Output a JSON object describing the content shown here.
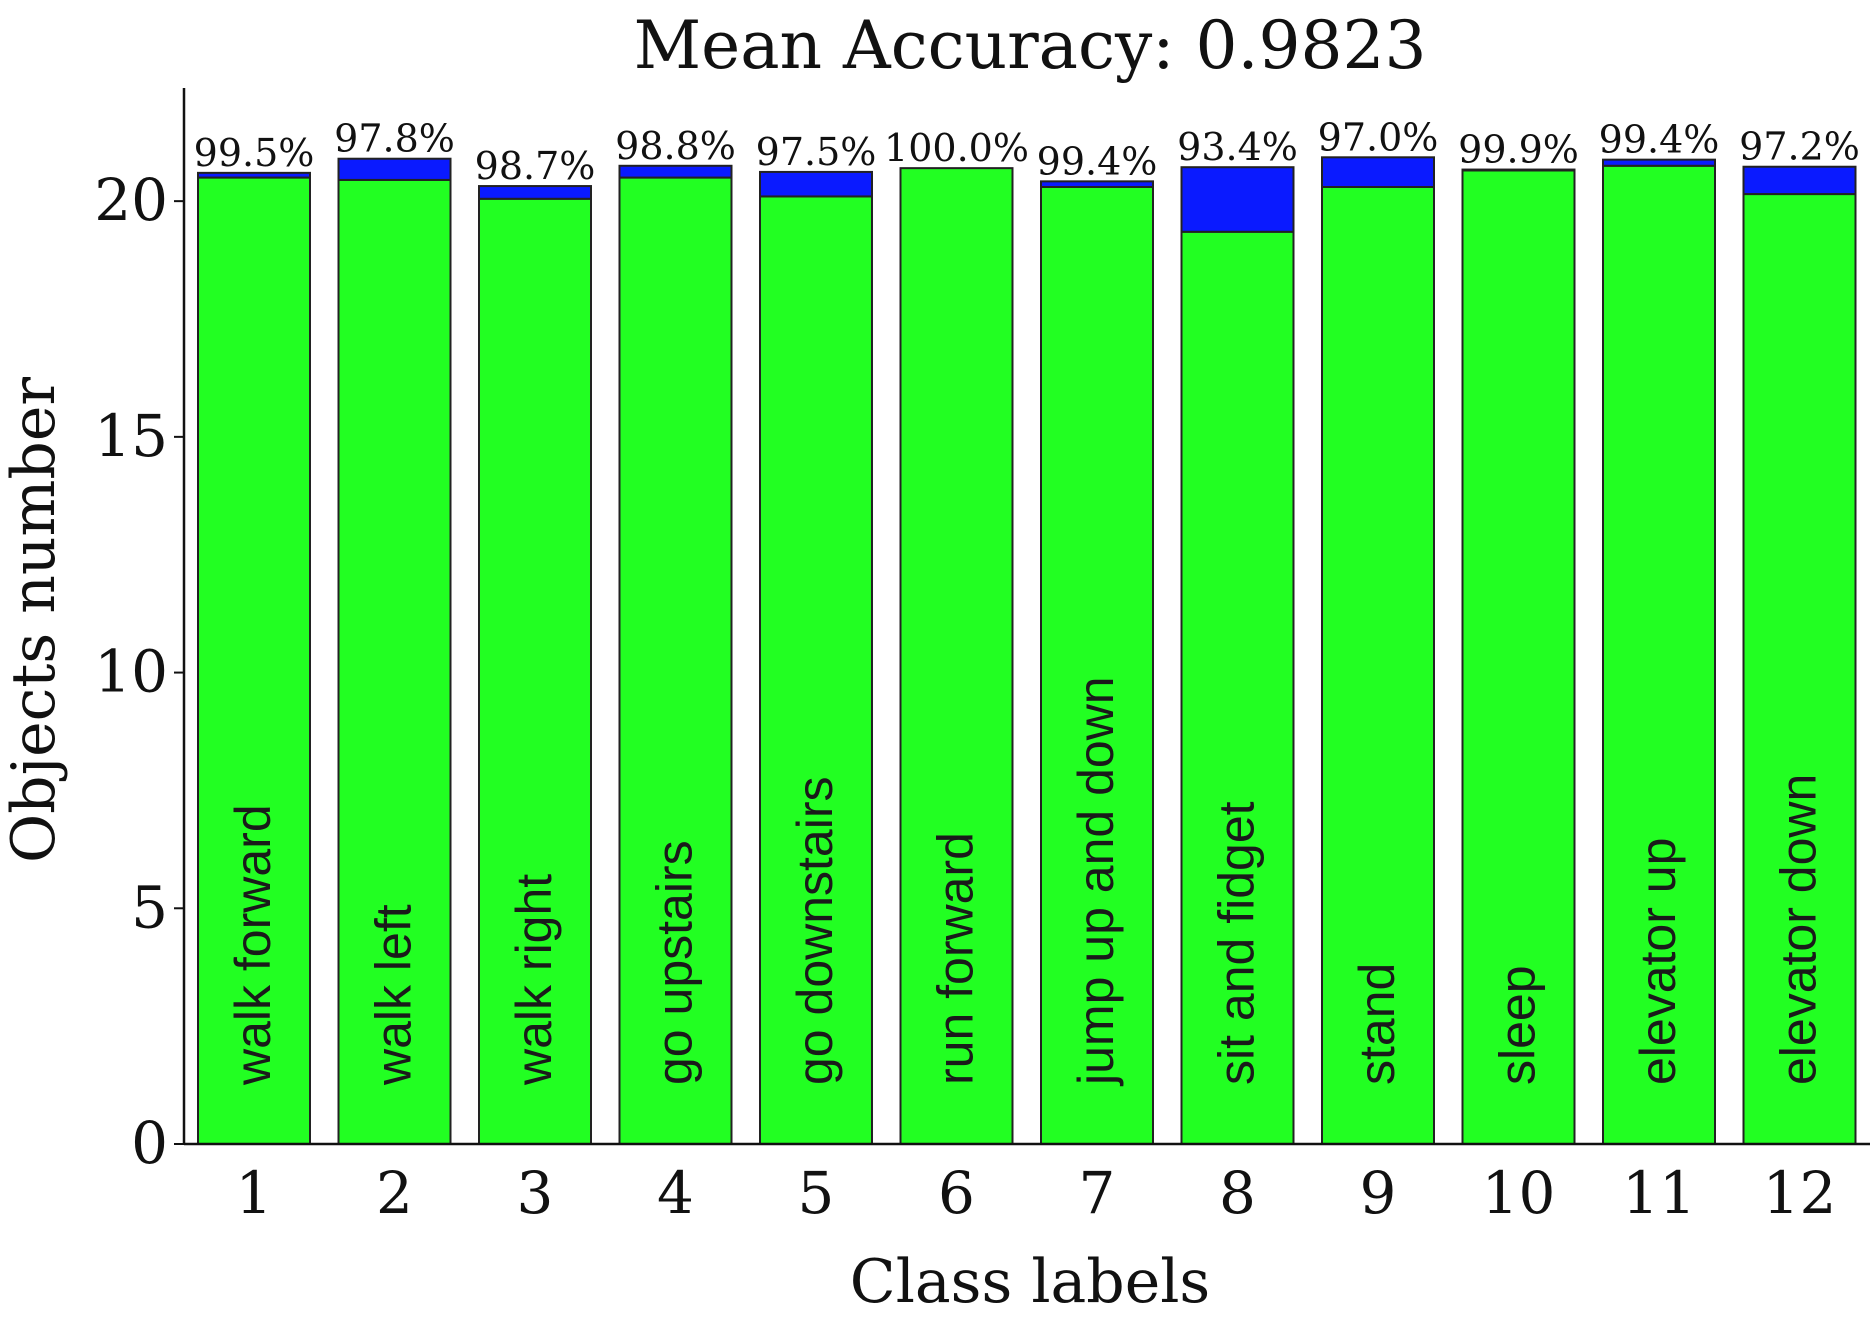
{
  "chart_data": {
    "type": "bar",
    "stacked": true,
    "title": "Mean Accuracy: 0.9823",
    "xlabel": "Class labels",
    "ylabel": "Objects number",
    "categories": [
      "1",
      "2",
      "3",
      "4",
      "5",
      "6",
      "7",
      "8",
      "9",
      "10",
      "11",
      "12"
    ],
    "class_names": [
      "walk forward",
      "walk left",
      "walk right",
      "go upstairs",
      "go downstairs",
      "run forward",
      "jump up and down",
      "sit and fidget",
      "stand",
      "sleep",
      "elevator up",
      "elevator down"
    ],
    "accuracy_labels": [
      "99.5%",
      "97.8%",
      "98.7%",
      "98.8%",
      "97.5%",
      "100.0%",
      "99.4%",
      "93.4%",
      "97.0%",
      "99.9%",
      "99.4%",
      "97.2%"
    ],
    "series": [
      {
        "color": "#22ff22",
        "values": [
          20.5,
          20.45,
          20.05,
          20.5,
          20.1,
          20.7,
          20.3,
          19.35,
          20.3,
          20.65,
          20.75,
          20.15
        ]
      },
      {
        "color": "#0a1aff",
        "values": [
          0.1,
          0.45,
          0.27,
          0.25,
          0.52,
          0.0,
          0.12,
          1.37,
          0.63,
          0.02,
          0.13,
          0.58
        ]
      }
    ],
    "yticks": [
      0,
      5,
      10,
      15,
      20
    ],
    "ylim": [
      0,
      22.4
    ],
    "grid": false,
    "bar_edge_color": "#222222"
  }
}
